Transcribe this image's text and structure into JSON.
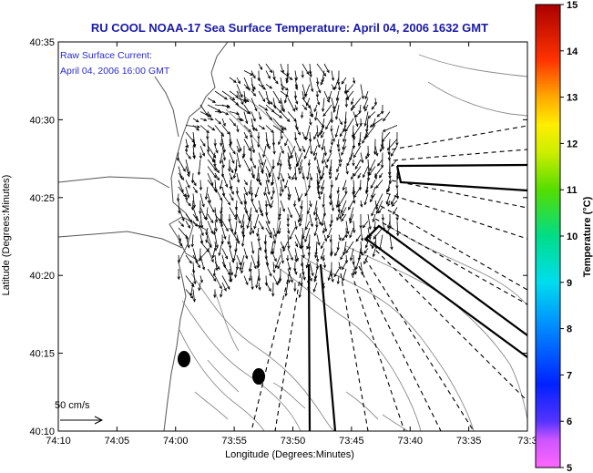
{
  "title": "RU COOL  NOAA-17  Sea Surface Temperature:  April 04, 2006 1632 GMT",
  "inset": {
    "line1": "Raw Surface Current:",
    "line2": "April 04, 2006 16:00 GMT"
  },
  "scale_label": "50 cm/s",
  "x_axis": {
    "label": "Longitude (Degrees:Minutes)",
    "ticks": [
      "74:10",
      "74:05",
      "74:00",
      "73:55",
      "73:50",
      "73:45",
      "73:40",
      "73:35",
      "73:3"
    ]
  },
  "y_axis": {
    "label": "Latitude (Degrees:Minutes)",
    "ticks": [
      "40:35",
      "40:30",
      "40:25",
      "40:20",
      "40:15",
      "40:10"
    ]
  },
  "colorbar": {
    "label": "Temperature (°C)",
    "ticks": [
      "15",
      "14",
      "13",
      "12",
      "11",
      "10",
      "9",
      "8",
      "7",
      "6",
      "5"
    ],
    "min": 5,
    "max": 15
  },
  "map_data": {
    "lon_range_deg": [
      -74.1667,
      -73.5
    ],
    "lat_range_deg": [
      40.1667,
      40.5833
    ],
    "vector_field": "raw surface current arrows over NY Bight apex",
    "markers": [
      {
        "lon": -73.98,
        "lat": 40.245
      },
      {
        "lon": -73.87,
        "lat": 40.225
      }
    ]
  },
  "colors": {
    "title": "#1a1aa8",
    "inset": "#2a2ad0",
    "frame": "#000000",
    "contour": "#8c8c8c",
    "vector": "#000000"
  }
}
